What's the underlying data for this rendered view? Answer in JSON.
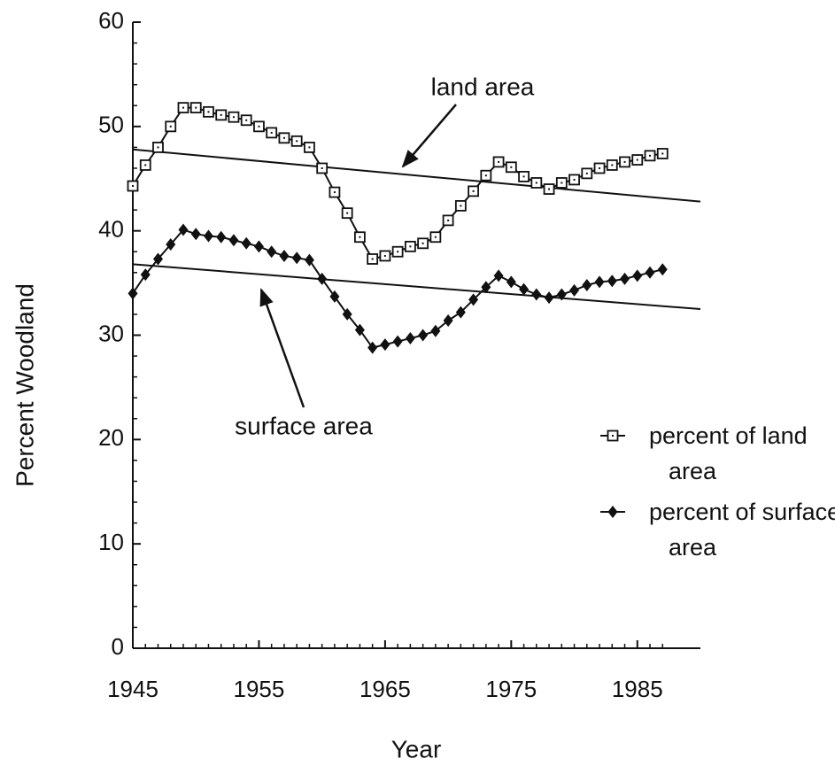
{
  "chart_data": {
    "type": "line",
    "x_label": "Year",
    "y_label": "Percent Woodland",
    "x": [
      1945,
      1946,
      1947,
      1948,
      1949,
      1950,
      1951,
      1952,
      1953,
      1954,
      1955,
      1956,
      1957,
      1958,
      1959,
      1960,
      1961,
      1962,
      1963,
      1964,
      1965,
      1966,
      1967,
      1968,
      1969,
      1970,
      1971,
      1972,
      1973,
      1974,
      1975,
      1976,
      1977,
      1978,
      1979,
      1980,
      1981,
      1982,
      1983,
      1984,
      1985,
      1986,
      1987
    ],
    "series": [
      {
        "name": "percent of land area",
        "color": "#111111",
        "marker": "open-square",
        "values": [
          44.3,
          46.3,
          48.0,
          50.0,
          51.8,
          51.8,
          51.4,
          51.1,
          50.9,
          50.6,
          50.0,
          49.4,
          48.9,
          48.6,
          48.0,
          46.0,
          43.7,
          41.7,
          39.4,
          37.3,
          37.6,
          38.0,
          38.5,
          38.8,
          39.4,
          41.0,
          42.4,
          43.8,
          45.3,
          46.6,
          46.1,
          45.2,
          44.6,
          44.0,
          44.6,
          44.9,
          45.5,
          46.0,
          46.3,
          46.6,
          46.8,
          47.2,
          47.4
        ]
      },
      {
        "name": "percent of surface area",
        "color": "#111111",
        "marker": "filled-diamond",
        "values": [
          34.0,
          35.8,
          37.3,
          38.7,
          40.1,
          39.7,
          39.5,
          39.4,
          39.1,
          38.8,
          38.5,
          38.0,
          37.6,
          37.4,
          37.2,
          35.4,
          33.7,
          32.0,
          30.5,
          28.8,
          29.1,
          29.4,
          29.7,
          30.0,
          30.4,
          31.4,
          32.2,
          33.4,
          34.6,
          35.7,
          35.1,
          34.4,
          33.9,
          33.6,
          33.9,
          34.3,
          34.8,
          35.1,
          35.2,
          35.4,
          35.7,
          36.0,
          36.3
        ]
      }
    ],
    "trend_lines": [
      {
        "x": [
          1945,
          1990
        ],
        "values": [
          47.8,
          42.8
        ]
      },
      {
        "x": [
          1945,
          1990
        ],
        "values": [
          36.8,
          32.5
        ]
      }
    ],
    "annotations": [
      "land area",
      "surface area"
    ],
    "xlim": [
      1945,
      1990
    ],
    "xticks": [
      1945,
      1955,
      1965,
      1975,
      1985
    ],
    "ylim": [
      0,
      60
    ],
    "yticks": [
      0,
      10,
      20,
      30,
      40,
      50,
      60
    ],
    "yminor_ticks": [
      2,
      4,
      6,
      8,
      12,
      14,
      16,
      18,
      22,
      24,
      26,
      28,
      32,
      34,
      36,
      38,
      42,
      44,
      46,
      48,
      52,
      54,
      56,
      58
    ],
    "grid": false,
    "legend": "right"
  }
}
